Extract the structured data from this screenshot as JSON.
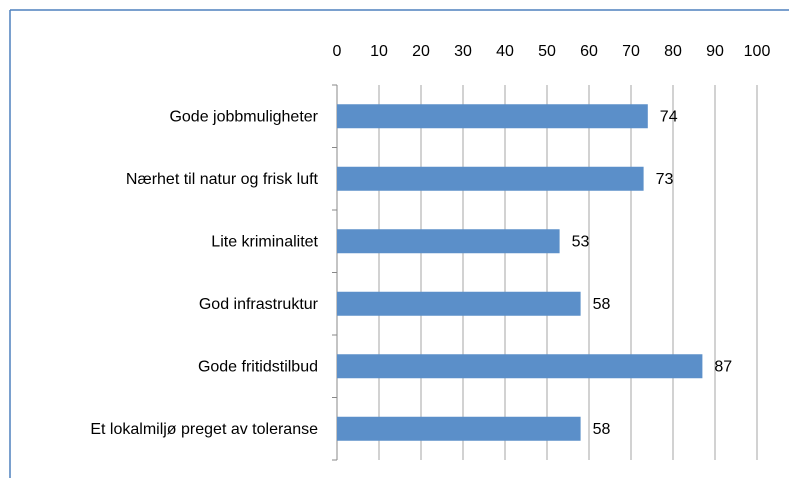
{
  "chart_data": {
    "type": "bar",
    "orientation": "horizontal",
    "categories": [
      "Gode jobbmuligheter",
      "Nærhet til natur og frisk luft",
      "Lite kriminalitet",
      "God infrastruktur",
      "Gode fritidstilbud",
      "Et lokalmiljø preget av toleranse"
    ],
    "values": [
      74,
      73,
      53,
      58,
      87,
      58
    ],
    "color": "#5b8fc9",
    "xlim": [
      0,
      100
    ],
    "xticks": [
      0,
      10,
      20,
      30,
      40,
      50,
      60,
      70,
      80,
      90,
      100
    ],
    "grid": true
  }
}
